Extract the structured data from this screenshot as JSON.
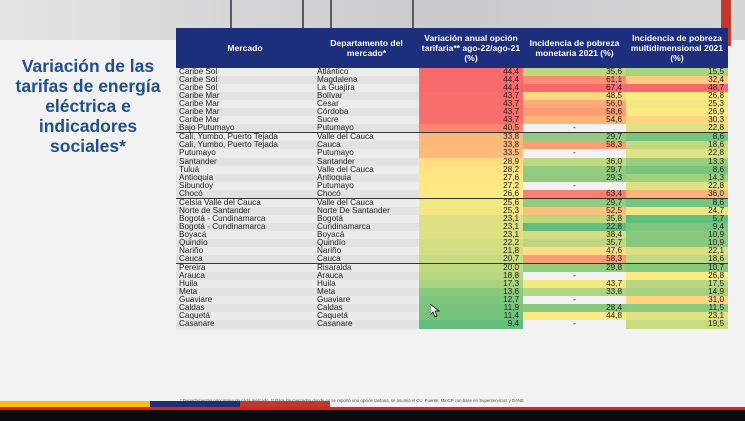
{
  "title": "Variación de las tarifas de energía eléctrica e indicadores sociales*",
  "headers": [
    "Mercado",
    "Departamento del mercado*",
    "Variación anual opción tarifaria** ago-22/ago-21 (%)",
    "Incidencia de pobreza monetaria 2021 (%)",
    "Incidencia de pobreza multidimensional 2021 (%)"
  ],
  "rows": [
    {
      "mercado": "Caribe Sol",
      "depto": "Atlántico",
      "var": "44,4",
      "mon": "35,6",
      "mul": "15,5",
      "sep": false
    },
    {
      "mercado": "Caribe Sol",
      "depto": "Magdalena",
      "var": "44,4",
      "mon": "61,1",
      "mul": "32,4",
      "sep": false
    },
    {
      "mercado": "Caribe Sol",
      "depto": "La Guajira",
      "var": "44,4",
      "mon": "67,4",
      "mul": "48,7",
      "sep": false
    },
    {
      "mercado": "Caribe Mar",
      "depto": "Bolívar",
      "var": "43,7",
      "mon": "48,5",
      "mul": "26,8",
      "sep": false
    },
    {
      "mercado": "Caribe Mar",
      "depto": "Cesar",
      "var": "43,7",
      "mon": "56,0",
      "mul": "25,3",
      "sep": false
    },
    {
      "mercado": "Caribe Mar",
      "depto": "Córdoba",
      "var": "43,7",
      "mon": "58,6",
      "mul": "26,9",
      "sep": false
    },
    {
      "mercado": "Caribe Mar",
      "depto": "Sucre",
      "var": "43,7",
      "mon": "54,6",
      "mul": "30,3",
      "sep": false
    },
    {
      "mercado": "Bajo Putumayo",
      "depto": "Putumayo",
      "var": "40,5",
      "mon": "-",
      "mul": "22,8",
      "sep": false
    },
    {
      "mercado": "Cali, Yumbo, Puerto Tejada",
      "depto": "Valle del Cauca",
      "var": "33,8",
      "mon": "29,7",
      "mul": "8,6",
      "sep": true
    },
    {
      "mercado": "Cali, Yumbo, Puerto Tejada",
      "depto": "Cauca",
      "var": "33,8",
      "mon": "58,3",
      "mul": "18,6",
      "sep": false
    },
    {
      "mercado": "Putumayo",
      "depto": "Putumayo",
      "var": "33,5",
      "mon": "-",
      "mul": "22,8",
      "sep": false
    },
    {
      "mercado": "Santander",
      "depto": "Santander",
      "var": "28,9",
      "mon": "36,0",
      "mul": "13,3",
      "sep": false
    },
    {
      "mercado": "Tuluá",
      "depto": "Valle del Cauca",
      "var": "28,2",
      "mon": "29,7",
      "mul": "8,6",
      "sep": false
    },
    {
      "mercado": "Antioquia",
      "depto": "Antioquia",
      "var": "27,6",
      "mon": "29,3",
      "mul": "14,3",
      "sep": false
    },
    {
      "mercado": "Sibundoy",
      "depto": "Putumayo",
      "var": "27,2",
      "mon": "-",
      "mul": "22,8",
      "sep": false
    },
    {
      "mercado": "Chocó",
      "depto": "Chocó",
      "var": "26,6",
      "mon": "63,4",
      "mul": "36,0",
      "sep": false
    },
    {
      "mercado": "Celsia Valle del Cauca",
      "depto": "Valle del Cauca",
      "var": "25,6",
      "mon": "29,7",
      "mul": "8,6",
      "sep": true
    },
    {
      "mercado": "Norte de Santander",
      "depto": "Norte De Santander",
      "var": "25,3",
      "mon": "52,5",
      "mul": "24,7",
      "sep": false
    },
    {
      "mercado": "Bogotá - Cundinamarca",
      "depto": "Bogotá",
      "var": "23,1",
      "mon": "35,8",
      "mul": "5,7",
      "sep": false
    },
    {
      "mercado": "Bogotá - Cundinamarca",
      "depto": "Cundinamarca",
      "var": "23,1",
      "mon": "22,8",
      "mul": "9,4",
      "sep": false
    },
    {
      "mercado": "Boyacá",
      "depto": "Boyacá",
      "var": "23,1",
      "mon": "38,4",
      "mul": "10,9",
      "sep": false
    },
    {
      "mercado": "Quindío",
      "depto": "Quindío",
      "var": "22,2",
      "mon": "35,7",
      "mul": "10,9",
      "sep": false
    },
    {
      "mercado": "Nariño",
      "depto": "Nariño",
      "var": "21,8",
      "mon": "47,6",
      "mul": "22,1",
      "sep": false
    },
    {
      "mercado": "Cauca",
      "depto": "Cauca",
      "var": "20,7",
      "mon": "58,3",
      "mul": "18,6",
      "sep": false
    },
    {
      "mercado": "Pereira",
      "depto": "Risaralda",
      "var": "20,0",
      "mon": "29,8",
      "mul": "10,7",
      "sep": true
    },
    {
      "mercado": "Arauca",
      "depto": "Arauca",
      "var": "18,8",
      "mon": "-",
      "mul": "26,8",
      "sep": false
    },
    {
      "mercado": "Huila",
      "depto": "Huila",
      "var": "17,3",
      "mon": "43,7",
      "mul": "17,5",
      "sep": false
    },
    {
      "mercado": "Meta",
      "depto": "Meta",
      "var": "13,6",
      "mon": "33,8",
      "mul": "14,9",
      "sep": false
    },
    {
      "mercado": "Guaviare",
      "depto": "Guaviare",
      "var": "12,7",
      "mon": "-",
      "mul": "31,0",
      "sep": false
    },
    {
      "mercado": "Caldas",
      "depto": "Caldas",
      "var": "11,9",
      "mon": "28,4",
      "mul": "11,5",
      "sep": false
    },
    {
      "mercado": "Caquetá",
      "depto": "Caquetá",
      "var": "11,4",
      "mon": "44,8",
      "mul": "23,1",
      "sep": false
    },
    {
      "mercado": "Casanare",
      "depto": "Casanare",
      "var": "9,4",
      "mon": "-",
      "mul": "19,5",
      "sep": false
    }
  ],
  "footnote": "* Departamentos principales de cada mercado. ** Para los mercados donde no se reportó una opción tarifaria, se asumió el CU. Fuente: MinCP con base en Superservicios y DANE.",
  "colors": {
    "header_bg": "#1d2e7c",
    "title": "#1f4f8c",
    "high": "#f8696b",
    "mid": "#ffeb84",
    "low": "#63be7b",
    "dash_bg": "#f2f2f2"
  },
  "video": {
    "progress_pct": 100
  }
}
